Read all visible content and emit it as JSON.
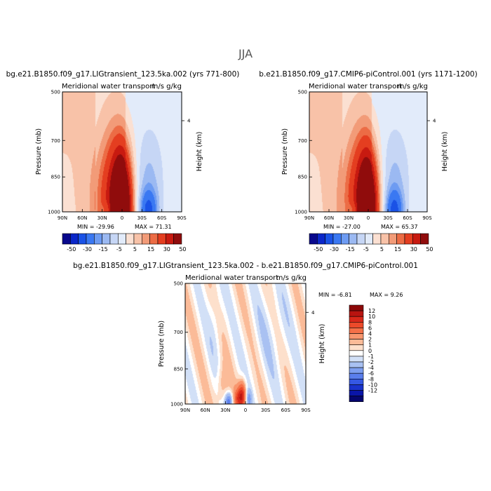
{
  "figure_title": "JJA",
  "chart_data": [
    {
      "type": "contour",
      "title": "bg.e21.B1850.f09_g17.LIGtransient_123.5ka.002 (yrs 771-800)",
      "variable": "Meridional water transport",
      "units": "m/s g/kg",
      "ylabel": "Pressure (mb)",
      "ylabel_right": "Height (km)",
      "x_ticks": [
        "90N",
        "60N",
        "30N",
        "0",
        "30S",
        "60S",
        "90S"
      ],
      "y_ticks": [
        "500",
        "700",
        "850",
        "1000"
      ],
      "right_ticks": [
        "4"
      ],
      "ylim": [
        1000,
        500
      ],
      "min_label": "MIN = -29.96",
      "max_label": "MAX =  71.31",
      "min": -29.96,
      "max": 71.31,
      "levels": [
        "-50",
        "-30",
        "-15",
        "-5",
        "5",
        "15",
        "30",
        "50"
      ],
      "colors": [
        "#08088c",
        "#0b27c9",
        "#1a52e6",
        "#3a78f2",
        "#6d9bf2",
        "#9bb9f2",
        "#c6d6f5",
        "#e2ebfa",
        "#fbe0d2",
        "#f8c2a8",
        "#f29b78",
        "#ec6c45",
        "#e43e20",
        "#c81a10",
        "#900c0c"
      ],
      "features": [
        {
          "center_lat": 0,
          "peak_pressure": 930,
          "value": 71.31
        },
        {
          "center_lat": -42,
          "peak_pressure": 960,
          "value": -29.96
        }
      ]
    },
    {
      "type": "contour",
      "title": "b.e21.B1850.f09_g17.CMIP6-piControl.001 (yrs 1171-1200)",
      "variable": "Meridional water transport",
      "units": "m/s g/kg",
      "ylabel": "Pressure (mb)",
      "ylabel_right": "Height (km)",
      "x_ticks": [
        "90N",
        "60N",
        "30N",
        "0",
        "30S",
        "60S",
        "90S"
      ],
      "y_ticks": [
        "500",
        "700",
        "850",
        "1000"
      ],
      "right_ticks": [
        "4"
      ],
      "ylim": [
        1000,
        500
      ],
      "min_label": "MIN = -27.00",
      "max_label": "MAX =  65.37",
      "min": -27.0,
      "max": 65.37,
      "levels": [
        "-50",
        "-30",
        "-15",
        "-5",
        "5",
        "15",
        "30",
        "50"
      ],
      "colors": [
        "#08088c",
        "#0b27c9",
        "#1a52e6",
        "#3a78f2",
        "#6d9bf2",
        "#9bb9f2",
        "#c6d6f5",
        "#e2ebfa",
        "#fbe0d2",
        "#f8c2a8",
        "#f29b78",
        "#ec6c45",
        "#e43e20",
        "#c81a10",
        "#900c0c"
      ],
      "features": [
        {
          "center_lat": 0,
          "peak_pressure": 930,
          "value": 65.37
        },
        {
          "center_lat": -42,
          "peak_pressure": 960,
          "value": -27.0
        }
      ]
    },
    {
      "type": "contour",
      "title": "bg.e21.B1850.f09_g17.LIGtransient_123.5ka.002 - b.e21.B1850.f09_g17.CMIP6-piControl.001",
      "variable": "Meridional water transport",
      "units": "m/s g/kg",
      "ylabel": "Pressure (mb)",
      "ylabel_right": "Height (km)",
      "x_ticks": [
        "90N",
        "60N",
        "30N",
        "0",
        "30S",
        "60S",
        "90S"
      ],
      "y_ticks": [
        "500",
        "700",
        "850",
        "1000"
      ],
      "right_ticks": [
        "4"
      ],
      "ylim": [
        1000,
        500
      ],
      "min_label": "MIN =  -6.81",
      "max_label": "MAX =   9.26",
      "min": -6.81,
      "max": 9.26,
      "levels": [
        "12",
        "10",
        "8",
        "6",
        "4",
        "2",
        "1",
        "0",
        "-1",
        "-2",
        "-4",
        "-6",
        "-8",
        "-10",
        "-12"
      ],
      "colors": [
        "#8c0808",
        "#b81410",
        "#d8281a",
        "#ec4a2a",
        "#f47048",
        "#f8966e",
        "#fbbb98",
        "#fde0cc",
        "#ffffff",
        "#d2e0f7",
        "#a9c1f2",
        "#7e9ff0",
        "#5a7eec",
        "#3558e3",
        "#1a33cc",
        "#0a15a8",
        "#06066e"
      ]
    }
  ]
}
